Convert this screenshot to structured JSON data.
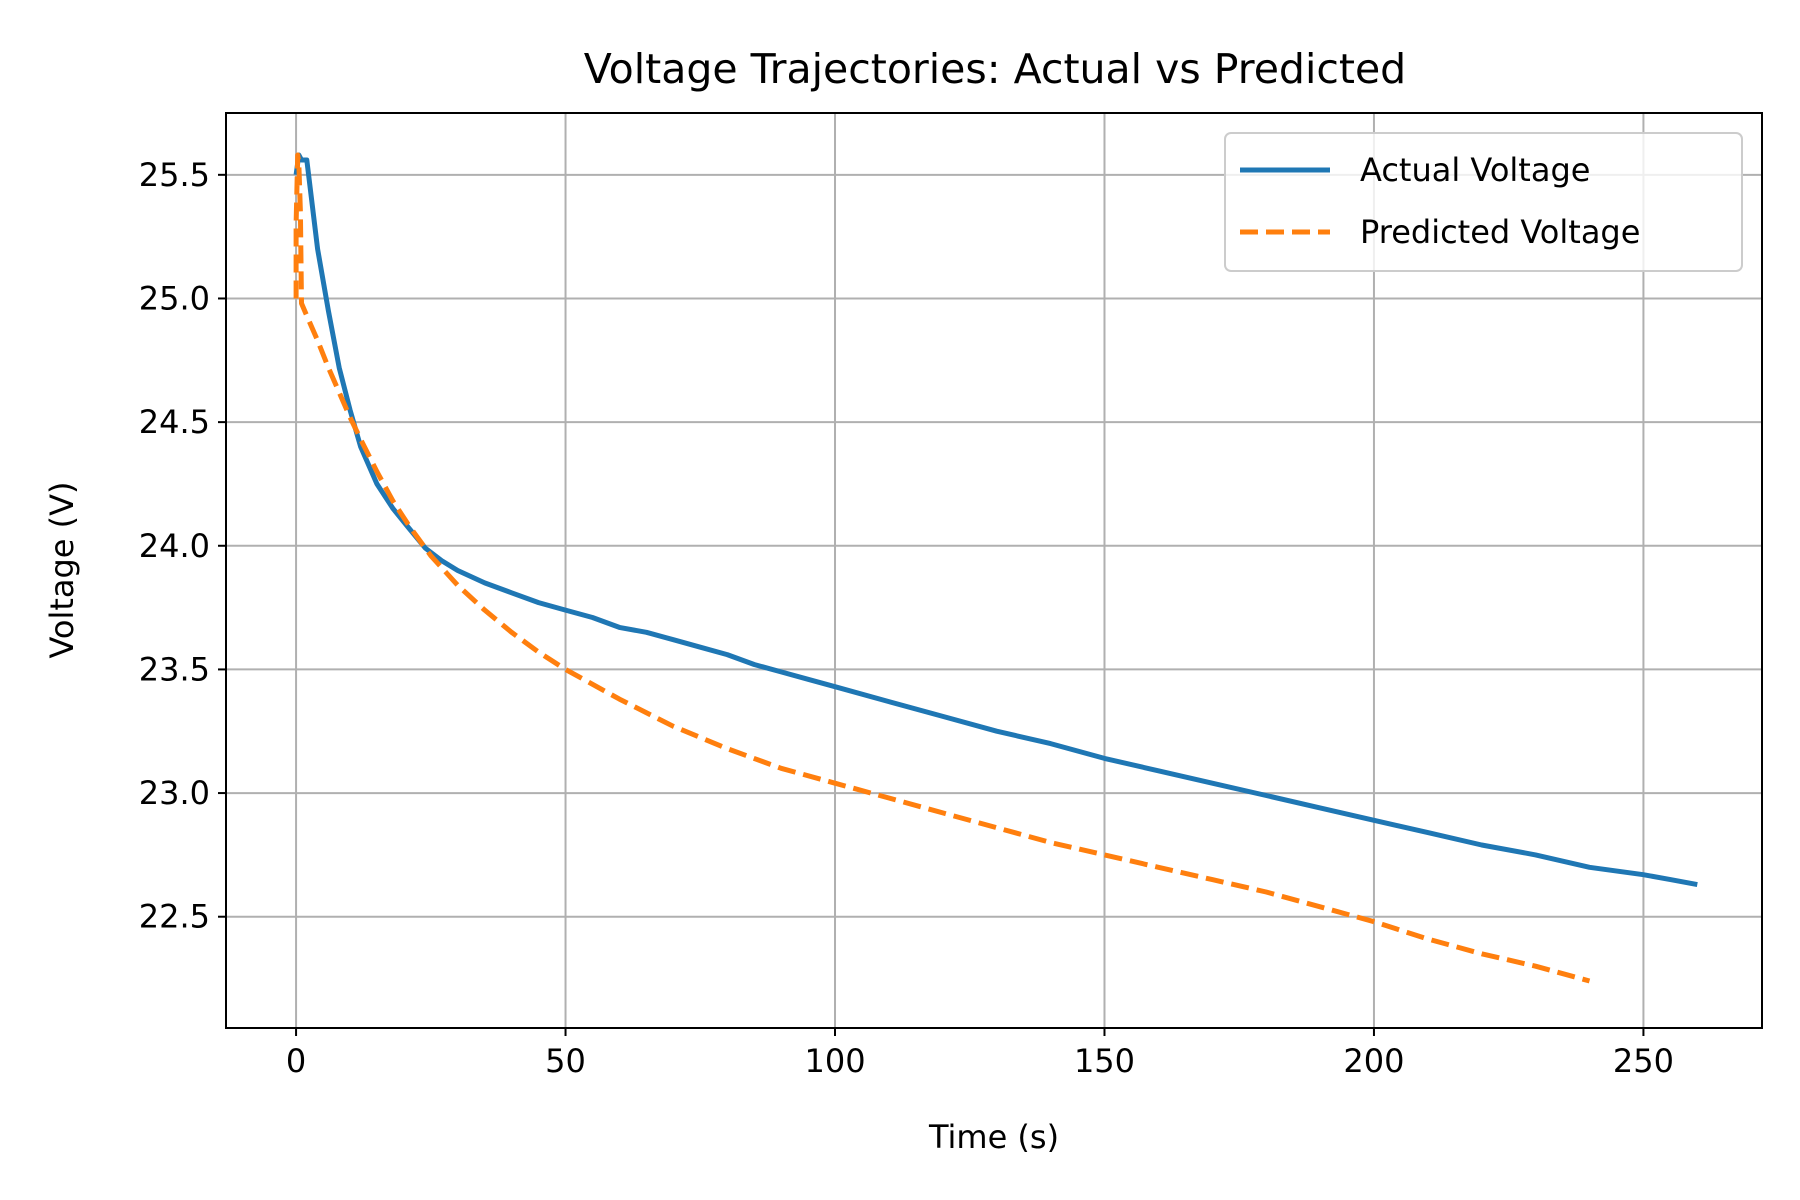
{
  "chart_data": {
    "type": "line",
    "title": "Voltage Trajectories: Actual vs Predicted",
    "xlabel": "Time (s)",
    "ylabel": "Voltage (V)",
    "xlim": [
      -13,
      272
    ],
    "ylim": [
      22.05,
      25.75
    ],
    "xticks": [
      0,
      50,
      100,
      150,
      200,
      250
    ],
    "yticks": [
      22.5,
      23.0,
      23.5,
      24.0,
      24.5,
      25.0,
      25.5
    ],
    "grid": true,
    "legend_position": "top-right",
    "series": [
      {
        "name": "Actual Voltage",
        "color": "#1f77b4",
        "style": "solid",
        "x": [
          0,
          0.5,
          1,
          2,
          4,
          6,
          8,
          10,
          12,
          15,
          18,
          21,
          24,
          27,
          30,
          35,
          40,
          45,
          50,
          55,
          60,
          65,
          70,
          75,
          80,
          85,
          90,
          95,
          100,
          110,
          120,
          130,
          140,
          150,
          160,
          170,
          180,
          190,
          200,
          210,
          220,
          230,
          240,
          250,
          255,
          260
        ],
        "y": [
          25.5,
          25.58,
          25.56,
          25.56,
          25.2,
          24.95,
          24.72,
          24.55,
          24.4,
          24.25,
          24.15,
          24.07,
          23.99,
          23.94,
          23.9,
          23.85,
          23.81,
          23.77,
          23.74,
          23.71,
          23.67,
          23.65,
          23.62,
          23.59,
          23.56,
          23.52,
          23.49,
          23.46,
          23.43,
          23.37,
          23.31,
          23.25,
          23.2,
          23.14,
          23.09,
          23.04,
          22.99,
          22.94,
          22.89,
          22.84,
          22.79,
          22.75,
          22.7,
          22.67,
          22.65,
          22.63
        ]
      },
      {
        "name": "Predicted Voltage",
        "color": "#ff7f0e",
        "style": "dashed",
        "x": [
          0,
          0,
          0.3,
          0.5,
          0.8,
          1,
          2,
          4,
          6,
          8,
          10,
          12,
          15,
          18,
          21,
          25,
          30,
          35,
          40,
          45,
          50,
          60,
          70,
          80,
          90,
          100,
          110,
          120,
          130,
          140,
          150,
          160,
          170,
          180,
          190,
          200,
          210,
          220,
          230,
          240
        ],
        "y": [
          25.0,
          25.3,
          25.58,
          25.55,
          25.35,
          24.98,
          24.93,
          24.83,
          24.72,
          24.62,
          24.52,
          24.43,
          24.3,
          24.18,
          24.08,
          23.96,
          23.84,
          23.74,
          23.65,
          23.57,
          23.5,
          23.38,
          23.27,
          23.18,
          23.1,
          23.04,
          22.98,
          22.92,
          22.86,
          22.8,
          22.75,
          22.7,
          22.65,
          22.6,
          22.54,
          22.48,
          22.41,
          22.35,
          22.3,
          22.24
        ]
      }
    ]
  }
}
